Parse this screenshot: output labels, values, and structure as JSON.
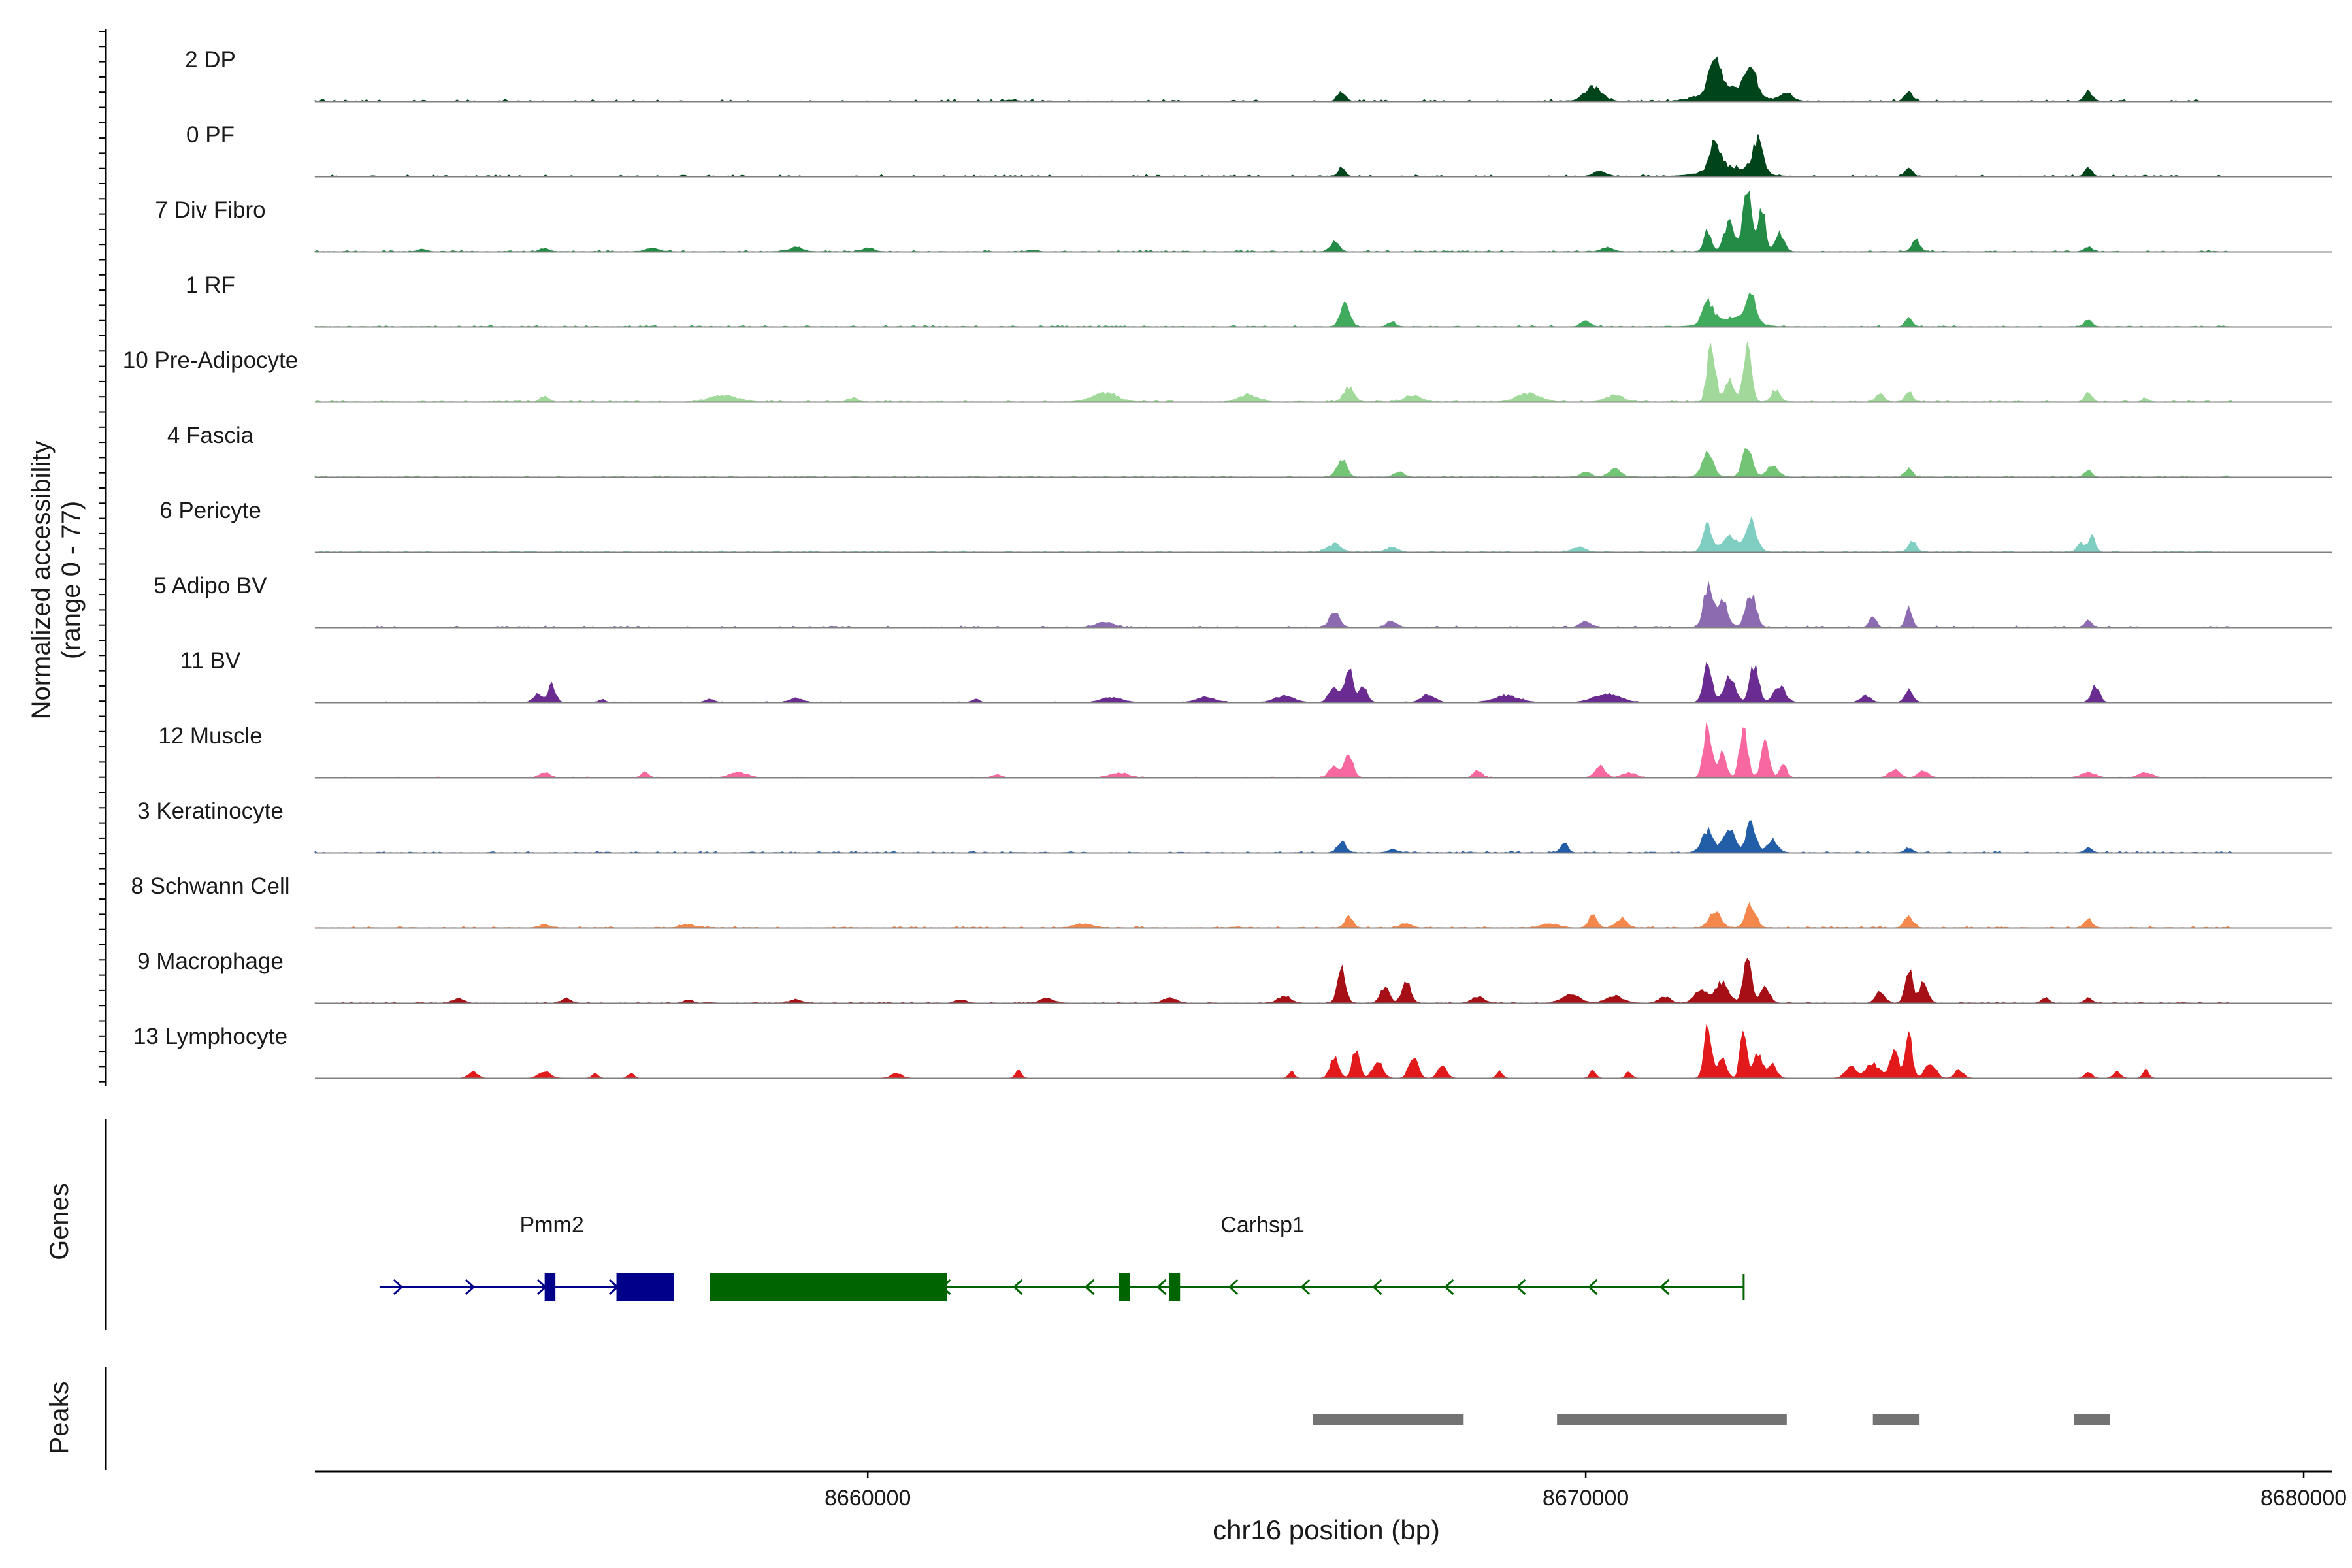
{
  "chart_data": {
    "type": "area",
    "title": "",
    "ylabel_line1": "Normalized accessibility",
    "ylabel_line2": "(range 0 - 77)",
    "ylim": [
      0,
      77
    ],
    "xlabel": "chr16 position (bp)",
    "xlim": [
      8652300,
      8680400
    ],
    "x_ticks": [
      8660000,
      8670000,
      8680000
    ],
    "x_tick_labels": [
      "8660000",
      "8670000",
      "8680000"
    ],
    "track_start": 8652300,
    "track_end": 8679000,
    "panel_labels": {
      "genes": "Genes",
      "peaks": "Peaks"
    },
    "series": [
      {
        "name": "2 DP",
        "color": "#00441b",
        "baseline": 1.2,
        "peaks": [
          [
            8662000,
            0.7,
            80
          ],
          [
            8666600,
            5.5,
            55
          ],
          [
            8670100,
            8.5,
            120
          ],
          [
            8671800,
            24,
            70
          ],
          [
            8672300,
            19,
            70
          ],
          [
            8672000,
            9,
            300
          ],
          [
            8672800,
            5,
            80
          ],
          [
            8674500,
            6,
            55
          ],
          [
            8677000,
            6,
            55
          ]
        ]
      },
      {
        "name": "0 PF",
        "color": "#00441b",
        "baseline": 1.0,
        "peaks": [
          [
            8666600,
            5,
            50
          ],
          [
            8670200,
            3,
            90
          ],
          [
            8671800,
            16,
            70
          ],
          [
            8672400,
            21,
            70
          ],
          [
            8672000,
            6,
            300
          ],
          [
            8674500,
            5,
            50
          ],
          [
            8677000,
            5,
            50
          ]
        ]
      },
      {
        "name": "7 Div Fibro",
        "color": "#238b45",
        "baseline": 0.8,
        "peaks": [
          [
            8653800,
            1.5,
            60
          ],
          [
            8655500,
            2,
            60
          ],
          [
            8657000,
            2.5,
            80
          ],
          [
            8659000,
            2.8,
            90
          ],
          [
            8660000,
            2,
            80
          ],
          [
            8662300,
            1.2,
            60
          ],
          [
            8666500,
            6,
            60
          ],
          [
            8670300,
            2.5,
            80
          ],
          [
            8671700,
            13,
            50
          ],
          [
            8672000,
            18,
            70
          ],
          [
            8672250,
            39,
            55
          ],
          [
            8672450,
            27,
            50
          ],
          [
            8672700,
            11,
            60
          ],
          [
            8674600,
            7,
            55
          ],
          [
            8677000,
            3,
            50
          ]
        ]
      },
      {
        "name": "1 RF",
        "color": "#41ab5d",
        "baseline": 0.8,
        "peaks": [
          [
            8666650,
            14,
            65
          ],
          [
            8667300,
            3,
            50
          ],
          [
            8670000,
            4,
            60
          ],
          [
            8671700,
            13,
            70
          ],
          [
            8672300,
            18,
            70
          ],
          [
            8672000,
            5,
            260
          ],
          [
            8674500,
            5,
            50
          ],
          [
            8677000,
            4,
            50
          ]
        ]
      },
      {
        "name": "10 Pre-Adipocyte",
        "color": "#a1d99b",
        "baseline": 1.0,
        "peaks": [
          [
            8655500,
            3.5,
            55
          ],
          [
            8658000,
            4,
            180
          ],
          [
            8659800,
            2.5,
            60
          ],
          [
            8663300,
            5,
            180
          ],
          [
            8665300,
            4,
            130
          ],
          [
            8666700,
            9,
            70
          ],
          [
            8667600,
            4,
            110
          ],
          [
            8669200,
            5,
            160
          ],
          [
            8670400,
            4,
            120
          ],
          [
            8671750,
            36,
            55
          ],
          [
            8672000,
            14,
            60
          ],
          [
            8672250,
            33,
            55
          ],
          [
            8672650,
            7,
            60
          ],
          [
            8674100,
            5,
            55
          ],
          [
            8674500,
            7,
            50
          ],
          [
            8677000,
            6,
            50
          ],
          [
            8677800,
            2,
            40
          ]
        ]
      },
      {
        "name": "4 Fascia",
        "color": "#74c476",
        "baseline": 0.8,
        "peaks": [
          [
            8666600,
            11,
            65
          ],
          [
            8667400,
            3,
            70
          ],
          [
            8670000,
            3,
            70
          ],
          [
            8670400,
            5,
            80
          ],
          [
            8671700,
            14,
            80
          ],
          [
            8672250,
            19,
            65
          ],
          [
            8672600,
            7,
            80
          ],
          [
            8674500,
            5,
            50
          ],
          [
            8677000,
            4,
            50
          ]
        ]
      },
      {
        "name": "6 Pericyte",
        "color": "#80cdc1",
        "baseline": 0.8,
        "peaks": [
          [
            8666500,
            5,
            90
          ],
          [
            8667300,
            3,
            80
          ],
          [
            8669900,
            3,
            90
          ],
          [
            8671700,
            16,
            65
          ],
          [
            8672000,
            10,
            90
          ],
          [
            8672300,
            19,
            80
          ],
          [
            8674550,
            7,
            55
          ],
          [
            8676900,
            5,
            55
          ],
          [
            8677050,
            10,
            45
          ]
        ]
      },
      {
        "name": "5 Adipo BV",
        "color": "#8c6bb1",
        "baseline": 0.8,
        "peaks": [
          [
            8663300,
            3,
            120
          ],
          [
            8666500,
            9,
            70
          ],
          [
            8667300,
            4,
            70
          ],
          [
            8670000,
            4,
            70
          ],
          [
            8671700,
            24,
            60
          ],
          [
            8671900,
            18,
            70
          ],
          [
            8672300,
            21,
            70
          ],
          [
            8674000,
            7,
            45
          ],
          [
            8674500,
            11,
            45
          ],
          [
            8677000,
            4,
            45
          ]
        ]
      },
      {
        "name": "11 BV",
        "color": "#6a2c91",
        "baseline": 0.4,
        "peaks": [
          [
            8655400,
            5,
            60
          ],
          [
            8655600,
            11,
            50
          ],
          [
            8656300,
            2,
            40
          ],
          [
            8657800,
            2,
            60
          ],
          [
            8659000,
            2.5,
            90
          ],
          [
            8661500,
            2,
            50
          ],
          [
            8663400,
            3,
            140
          ],
          [
            8664700,
            3,
            130
          ],
          [
            8665800,
            4,
            130
          ],
          [
            8666500,
            10,
            70
          ],
          [
            8666700,
            24,
            50
          ],
          [
            8666900,
            9,
            60
          ],
          [
            8667800,
            5,
            90
          ],
          [
            8668900,
            4,
            170
          ],
          [
            8670300,
            5,
            180
          ],
          [
            8671700,
            22,
            60
          ],
          [
            8672000,
            15,
            80
          ],
          [
            8672350,
            23,
            60
          ],
          [
            8672700,
            10,
            80
          ],
          [
            8673900,
            4,
            70
          ],
          [
            8674500,
            8,
            55
          ],
          [
            8677100,
            10,
            55
          ]
        ]
      },
      {
        "name": "12 Muscle",
        "color": "#f768a1",
        "baseline": 0.4,
        "peaks": [
          [
            8655500,
            3,
            70
          ],
          [
            8656900,
            3,
            50
          ],
          [
            8658200,
            3,
            120
          ],
          [
            8661800,
            2,
            60
          ],
          [
            8663500,
            3,
            120
          ],
          [
            8666700,
            13,
            60
          ],
          [
            8666500,
            7,
            70
          ],
          [
            8668500,
            4,
            60
          ],
          [
            8670200,
            7,
            70
          ],
          [
            8670600,
            3,
            90
          ],
          [
            8671700,
            31,
            55
          ],
          [
            8671900,
            16,
            55
          ],
          [
            8672200,
            29,
            55
          ],
          [
            8672500,
            21,
            55
          ],
          [
            8672750,
            8,
            50
          ],
          [
            8674300,
            5,
            70
          ],
          [
            8674700,
            4,
            70
          ],
          [
            8677000,
            3,
            100
          ],
          [
            8677800,
            3,
            90
          ]
        ]
      },
      {
        "name": "3 Keratinocyte",
        "color": "#225ea8",
        "baseline": 0.8,
        "peaks": [
          [
            8666600,
            7,
            60
          ],
          [
            8667300,
            2,
            60
          ],
          [
            8669700,
            6,
            50
          ],
          [
            8671700,
            13,
            80
          ],
          [
            8672000,
            14,
            80
          ],
          [
            8672300,
            19,
            65
          ],
          [
            8672600,
            8,
            70
          ],
          [
            8674500,
            3,
            50
          ],
          [
            8677000,
            3,
            50
          ]
        ]
      },
      {
        "name": "8 Schwann Cell",
        "color": "#f4874b",
        "baseline": 0.8,
        "peaks": [
          [
            8655500,
            2,
            60
          ],
          [
            8657500,
            2,
            100
          ],
          [
            8663000,
            2.5,
            120
          ],
          [
            8666700,
            7,
            55
          ],
          [
            8667500,
            3,
            70
          ],
          [
            8669500,
            2.5,
            120
          ],
          [
            8670100,
            8,
            55
          ],
          [
            8670500,
            6,
            70
          ],
          [
            8671800,
            10,
            80
          ],
          [
            8672300,
            14,
            70
          ],
          [
            8674500,
            7,
            60
          ],
          [
            8677000,
            6,
            55
          ]
        ]
      },
      {
        "name": "9 Macrophage",
        "color": "#a50f15",
        "baseline": 0.4,
        "peaks": [
          [
            8654300,
            3,
            70
          ],
          [
            8655800,
            3,
            60
          ],
          [
            8657500,
            2,
            60
          ],
          [
            8659000,
            2,
            80
          ],
          [
            8661300,
            2,
            70
          ],
          [
            8662500,
            3,
            90
          ],
          [
            8664200,
            3,
            90
          ],
          [
            8665800,
            4,
            90
          ],
          [
            8666600,
            21,
            55
          ],
          [
            8667200,
            10,
            60
          ],
          [
            8667500,
            14,
            60
          ],
          [
            8668500,
            4,
            80
          ],
          [
            8669800,
            5,
            120
          ],
          [
            8670400,
            4,
            120
          ],
          [
            8671100,
            4,
            80
          ],
          [
            8671600,
            8,
            90
          ],
          [
            8671900,
            13,
            90
          ],
          [
            8672250,
            27,
            55
          ],
          [
            8672500,
            10,
            60
          ],
          [
            8674100,
            7,
            60
          ],
          [
            8674500,
            22,
            50
          ],
          [
            8674700,
            12,
            60
          ],
          [
            8676400,
            3,
            50
          ],
          [
            8677000,
            3,
            50
          ]
        ]
      },
      {
        "name": "13 Lymphocyte",
        "color": "#e31a1c",
        "baseline": 0,
        "peaks": [
          [
            8654500,
            4,
            60
          ],
          [
            8655500,
            4,
            80
          ],
          [
            8656200,
            3,
            40
          ],
          [
            8656700,
            3,
            40
          ],
          [
            8660400,
            3,
            70
          ],
          [
            8662100,
            5,
            40
          ],
          [
            8665900,
            4,
            40
          ],
          [
            8666500,
            12,
            60
          ],
          [
            8666800,
            18,
            50
          ],
          [
            8667100,
            10,
            70
          ],
          [
            8667600,
            14,
            60
          ],
          [
            8668000,
            7,
            60
          ],
          [
            8668800,
            4,
            40
          ],
          [
            8670100,
            5,
            40
          ],
          [
            8670600,
            4,
            40
          ],
          [
            8671700,
            31,
            50
          ],
          [
            8671900,
            12,
            60
          ],
          [
            8672200,
            33,
            45
          ],
          [
            8672400,
            16,
            60
          ],
          [
            8672600,
            8,
            60
          ],
          [
            8673700,
            7,
            80
          ],
          [
            8674000,
            9,
            90
          ],
          [
            8674300,
            16,
            60
          ],
          [
            8674500,
            25,
            50
          ],
          [
            8674800,
            10,
            70
          ],
          [
            8675200,
            5,
            60
          ],
          [
            8677000,
            4,
            50
          ],
          [
            8677400,
            4,
            50
          ],
          [
            8677800,
            5,
            40
          ]
        ]
      }
    ],
    "genes": [
      {
        "name": "Pmm2",
        "label_x": 8655600,
        "color": "#00008b",
        "strand": "+",
        "start": 8653200,
        "end": 8657300,
        "exons": [
          [
            8655500,
            8655650
          ],
          [
            8656500,
            8657300
          ]
        ]
      },
      {
        "name": "Carhsp1",
        "label_x": 8665500,
        "color": "#006400",
        "strand": "-",
        "start": 8657800,
        "end": 8672200,
        "exons": [
          [
            8657800,
            8661100
          ],
          [
            8663500,
            8663650
          ],
          [
            8664200,
            8664350
          ]
        ]
      }
    ],
    "peaks": [
      [
        8666200,
        8668300
      ],
      [
        8669600,
        8672800
      ],
      [
        8674000,
        8674650
      ],
      [
        8676800,
        8677300
      ]
    ]
  }
}
